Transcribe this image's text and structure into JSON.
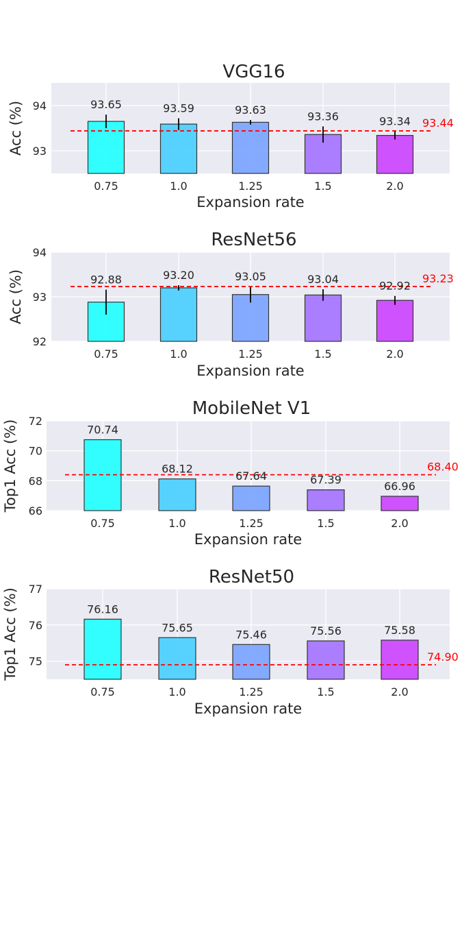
{
  "colors": {
    "panel_bg": "#EAEAF2",
    "grid": "#FFFFFF",
    "bar_edge": "#333333",
    "ref_line": "#FF0000",
    "bars": [
      "#29FFFF",
      "#4FD1FF",
      "#7EA7FF",
      "#A877FF",
      "#CE4AFF"
    ]
  },
  "chart_data": [
    {
      "type": "bar",
      "title": "VGG16",
      "xlabel": "Expansion rate",
      "ylabel": "Acc (%)",
      "categories": [
        "0.75",
        "1.0",
        "1.25",
        "1.5",
        "2.0"
      ],
      "values": [
        93.65,
        93.59,
        93.63,
        93.36,
        93.34
      ],
      "value_labels": [
        "93.65",
        "93.59",
        "93.63",
        "93.36",
        "93.34"
      ],
      "error": [
        0.15,
        0.13,
        0.05,
        0.18,
        0.09
      ],
      "ylim": [
        92.5,
        94.5
      ],
      "yticks": [
        93,
        94
      ],
      "reference": {
        "value": 93.44,
        "label": "93.44"
      },
      "grid": true
    },
    {
      "type": "bar",
      "title": "ResNet56",
      "xlabel": "Expansion rate",
      "ylabel": "Acc (%)",
      "categories": [
        "0.75",
        "1.0",
        "1.25",
        "1.5",
        "2.0"
      ],
      "values": [
        92.88,
        93.2,
        93.05,
        93.04,
        92.92
      ],
      "value_labels": [
        "92.88",
        "93.20",
        "93.05",
        "93.04",
        "92.92"
      ],
      "error": [
        0.28,
        0.06,
        0.18,
        0.13,
        0.1
      ],
      "ylim": [
        92,
        94
      ],
      "yticks": [
        92,
        93,
        94
      ],
      "reference": {
        "value": 93.23,
        "label": "93.23"
      },
      "grid": true
    },
    {
      "type": "bar",
      "title": "MobileNet V1",
      "xlabel": "Expansion rate",
      "ylabel": "Top1 Acc (%)",
      "categories": [
        "0.75",
        "1.0",
        "1.25",
        "1.5",
        "2.0"
      ],
      "values": [
        70.74,
        68.12,
        67.64,
        67.39,
        66.96
      ],
      "value_labels": [
        "70.74",
        "68.12",
        "67.64",
        "67.39",
        "66.96"
      ],
      "ylim": [
        66,
        72
      ],
      "yticks": [
        66,
        68,
        70,
        72
      ],
      "reference": {
        "value": 68.4,
        "label": "68.40"
      },
      "grid": true
    },
    {
      "type": "bar",
      "title": "ResNet50",
      "xlabel": "Expansion rate",
      "ylabel": "Top1 Acc (%)",
      "categories": [
        "0.75",
        "1.0",
        "1.25",
        "1.5",
        "2.0"
      ],
      "values": [
        76.16,
        75.65,
        75.46,
        75.56,
        75.58
      ],
      "value_labels": [
        "76.16",
        "75.65",
        "75.46",
        "75.56",
        "75.58"
      ],
      "ylim": [
        74.5,
        77
      ],
      "yticks": [
        75,
        76,
        77
      ],
      "reference": {
        "value": 74.9,
        "label": "74.90"
      },
      "grid": true
    }
  ]
}
